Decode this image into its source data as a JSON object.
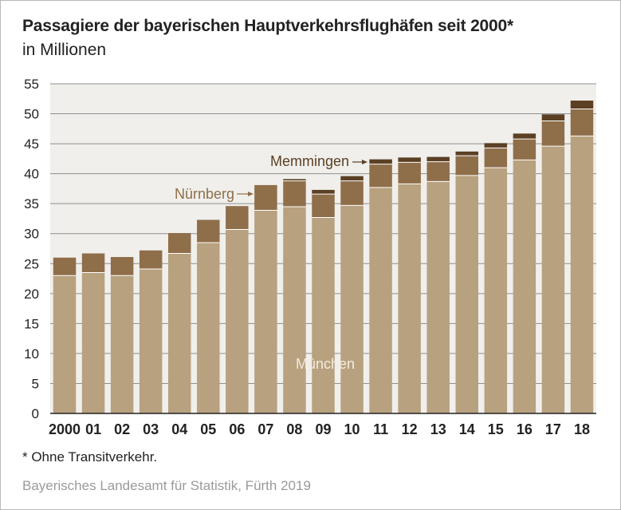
{
  "title": "Passagiere der bayerischen Hauptverkehrsflughäfen seit 2000*",
  "subtitle": "in Millionen",
  "footnote": "*  Ohne Transitverkehr.",
  "source": "Bayerisches Landesamt für Statistik, Fürth 2019",
  "colors": {
    "background": "#ffffff",
    "plot_background": "#f0efec",
    "gridline": "#8f8f8f",
    "muenchen": "#b8a17f",
    "nuernberg": "#8f6e4a",
    "memmingen": "#5b4024",
    "label_muenchen": "#f3ece0",
    "label_nuernberg": "#8f6e4a",
    "label_memmingen": "#5b4024"
  },
  "chart_data": {
    "type": "bar",
    "stacked": true,
    "title": "Passagiere der bayerischen Hauptverkehrsflughäfen seit 2000*",
    "subtitle": "in Millionen",
    "xlabel": "",
    "ylabel": "",
    "ylim": [
      0,
      55
    ],
    "yticks": [
      "0",
      "5",
      "10",
      "15",
      "20",
      "25",
      "30",
      "35",
      "40",
      "45",
      "50",
      "55"
    ],
    "grid": true,
    "categories": [
      "2000",
      "01",
      "02",
      "03",
      "04",
      "05",
      "06",
      "07",
      "08",
      "09",
      "10",
      "11",
      "12",
      "13",
      "14",
      "15",
      "16",
      "17",
      "18"
    ],
    "series": [
      {
        "name": "München",
        "values": [
          23.0,
          23.5,
          23.0,
          24.1,
          26.7,
          28.5,
          30.7,
          33.9,
          34.5,
          32.7,
          34.7,
          37.7,
          38.3,
          38.7,
          39.7,
          41.0,
          42.3,
          44.6,
          46.3
        ]
      },
      {
        "name": "Nürnberg",
        "values": [
          3.0,
          3.2,
          3.1,
          3.1,
          3.4,
          3.8,
          3.9,
          4.2,
          4.3,
          3.9,
          4.1,
          3.9,
          3.6,
          3.3,
          3.3,
          3.3,
          3.5,
          4.2,
          4.5
        ]
      },
      {
        "name": "Memmingen",
        "values": [
          0.0,
          0.0,
          0.0,
          0.0,
          0.0,
          0.0,
          0.0,
          0.0,
          0.3,
          0.7,
          0.8,
          0.8,
          0.8,
          0.8,
          0.7,
          0.8,
          0.9,
          1.1,
          1.4
        ]
      }
    ],
    "series_labels": {
      "muenchen": "München",
      "nuernberg": "Nürnberg",
      "memmingen": "Memmingen"
    }
  }
}
